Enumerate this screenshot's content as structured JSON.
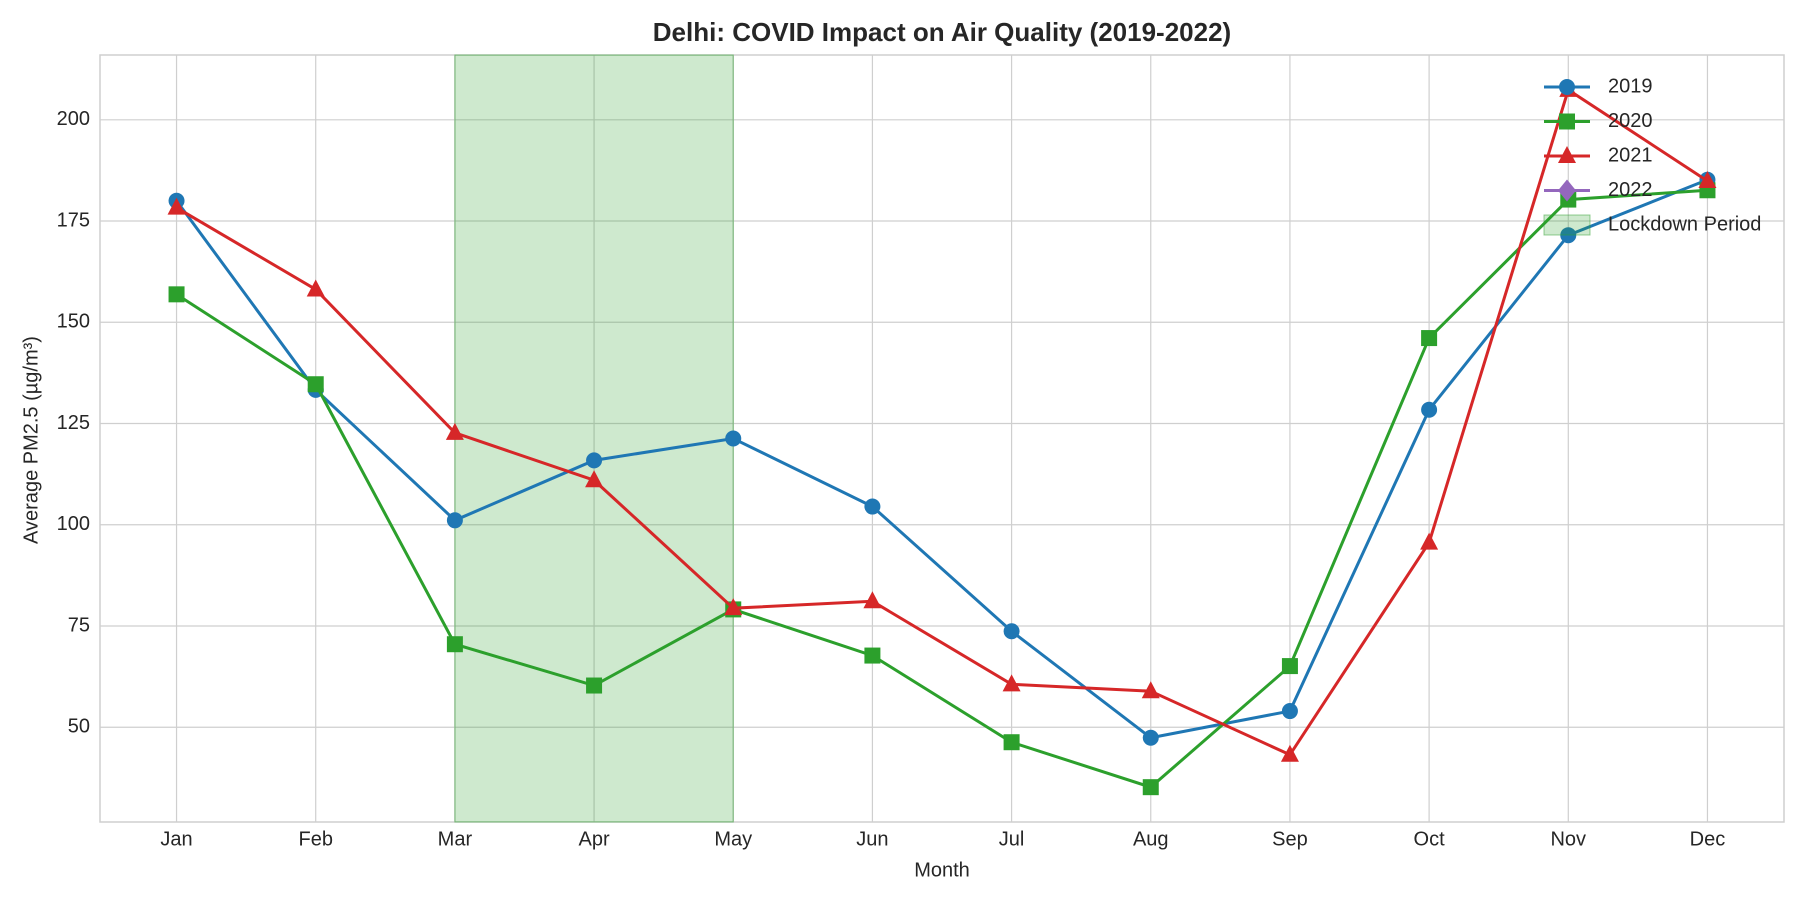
{
  "chart_data": {
    "type": "line",
    "title": "Delhi: COVID Impact on Air Quality (2019-2022)",
    "x_label": "Month",
    "y_label": "Average PM2.5 (µg/m³)",
    "categories": [
      "Jan",
      "Feb",
      "Mar",
      "Apr",
      "May",
      "Jun",
      "Jul",
      "Aug",
      "Sep",
      "Oct",
      "Nov",
      "Dec"
    ],
    "series": [
      {
        "name": "2019",
        "color": "#1f77b4",
        "marker": "circle",
        "values": [
          180.0,
          133.3,
          101.1,
          115.9,
          121.3,
          104.5,
          73.7,
          47.4,
          54.0,
          128.4,
          171.5,
          185.2
        ]
      },
      {
        "name": "2020",
        "color": "#2ca02c",
        "marker": "square",
        "values": [
          156.9,
          134.7,
          70.5,
          60.3,
          79.1,
          67.7,
          46.3,
          35.2,
          65.1,
          146.1,
          180.3,
          182.6
        ]
      },
      {
        "name": "2021",
        "color": "#d62728",
        "marker": "triangle",
        "values": [
          178.3,
          158.1,
          122.7,
          111.0,
          79.4,
          81.1,
          60.6,
          58.9,
          43.2,
          95.6,
          207.4,
          184.9
        ]
      },
      {
        "name": "2022",
        "color": "#9467bd",
        "marker": "diamond",
        "values": [
          null,
          null,
          null,
          null,
          null,
          null,
          null,
          null,
          null,
          null,
          null,
          null
        ]
      }
    ],
    "shade": {
      "label": "Lockdown Period",
      "start": "Mar",
      "end": "May",
      "color": "#2ca02c"
    },
    "ylim": [
      26.6,
      216
    ],
    "yticks": [
      50,
      75,
      100,
      125,
      150,
      175,
      200
    ],
    "grid": true,
    "legend": "upper right"
  }
}
